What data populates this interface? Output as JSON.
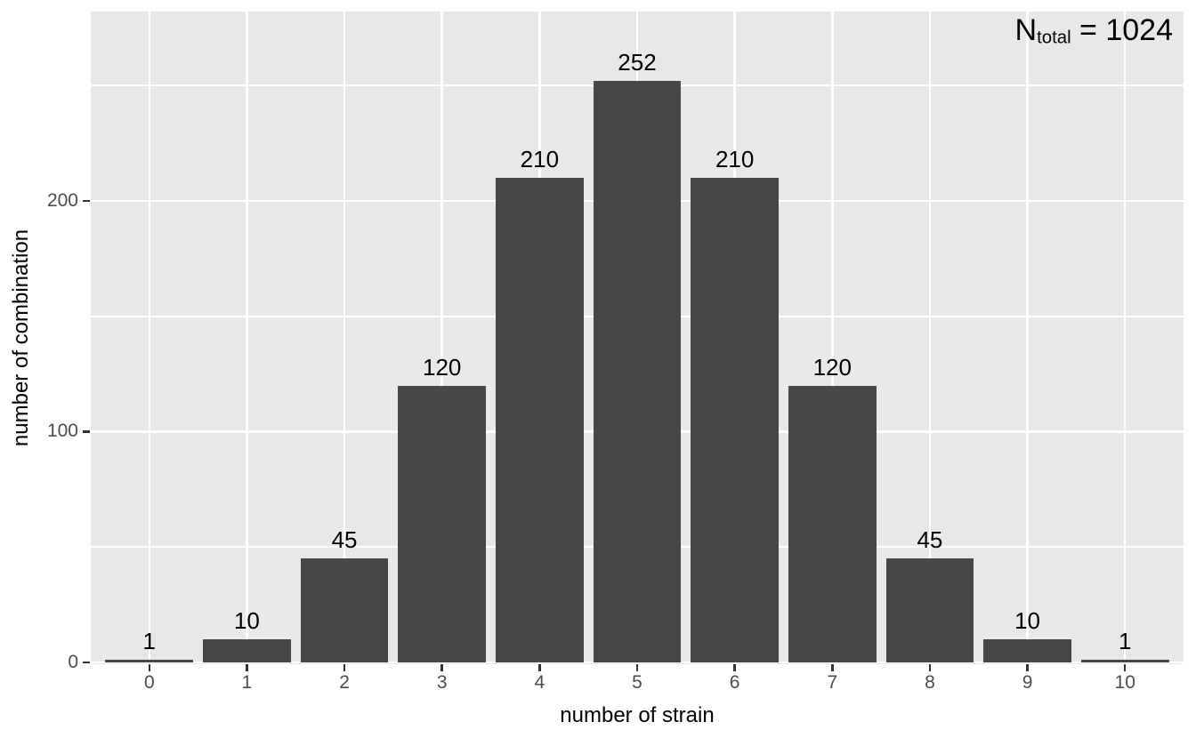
{
  "chart_data": {
    "type": "bar",
    "annotation": {
      "base": "N",
      "subscript": "total",
      "rest": " = 1024"
    },
    "xlabel": "number of strain",
    "ylabel": "number of combination",
    "categories": [
      "0",
      "1",
      "2",
      "3",
      "4",
      "5",
      "6",
      "7",
      "8",
      "9",
      "10"
    ],
    "values": [
      1,
      10,
      45,
      120,
      210,
      252,
      210,
      120,
      45,
      10,
      1
    ],
    "bar_labels": [
      "1",
      "10",
      "45",
      "120",
      "210",
      "252",
      "210",
      "120",
      "45",
      "10",
      "1"
    ],
    "ylim": [
      0,
      282
    ],
    "y_major_ticks": [
      0,
      100,
      200
    ],
    "y_minor_gridlines": [
      50,
      150,
      250
    ],
    "bar_width_fraction": 0.9,
    "x_edge_padding_units": 0.6,
    "grid": true,
    "legend": "none",
    "colors": {
      "bar": "#474747",
      "panel_bg": "#E8E8E8",
      "gridline": "#FFFFFF",
      "tick_label": "#4D4D4D",
      "tick_mark": "#333333",
      "axis_title": "#000000",
      "value_label": "#000000",
      "background": "#FFFFFF"
    }
  }
}
